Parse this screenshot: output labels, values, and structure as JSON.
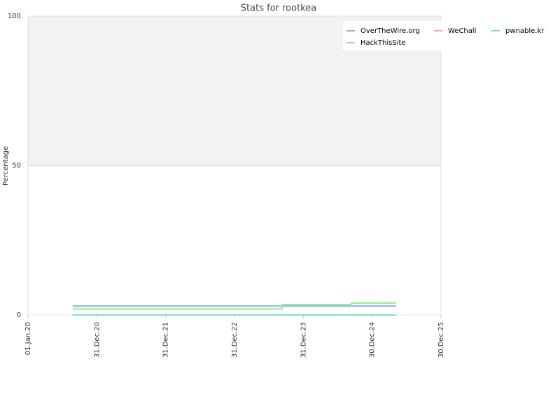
{
  "chart_data": {
    "type": "line",
    "title": "Stats for rootkea",
    "y_label": "Percentage",
    "x": [
      "2020-08-25",
      "2023-09-10",
      "2024-09-10",
      "2025-05-05"
    ],
    "series": [
      {
        "name": "OverTheWire.org",
        "color": "#7cb5ec",
        "values": [
          3,
          3,
          3,
          3
        ]
      },
      {
        "name": "WeChall",
        "color": "#f7a3b0",
        "values": [
          0,
          0,
          0,
          0
        ]
      },
      {
        "name": "pwnable.kr",
        "color": "#7fe0c8",
        "values": [
          0,
          0,
          0,
          0
        ]
      },
      {
        "name": "HackThisSite",
        "color": "#90ed7d",
        "values": [
          2,
          3.5,
          4,
          4
        ]
      }
    ],
    "xlim": [
      "2020-01-01",
      "2025-12-30"
    ],
    "xticks": [
      {
        "value": "2020-01-01",
        "label": "01.Jan.20"
      },
      {
        "value": "2020-12-31",
        "label": "31.Dec.20"
      },
      {
        "value": "2021-12-31",
        "label": "31.Dec.21"
      },
      {
        "value": "2022-12-31",
        "label": "31.Dec.22"
      },
      {
        "value": "2023-12-31",
        "label": "31.Dec.23"
      },
      {
        "value": "2024-12-30",
        "label": "30.Dec.24"
      },
      {
        "value": "2025-12-30",
        "label": "30.Dec.25"
      }
    ],
    "ylim": [
      0,
      100
    ],
    "yticks": [
      0,
      50,
      100
    ],
    "grid": true
  }
}
